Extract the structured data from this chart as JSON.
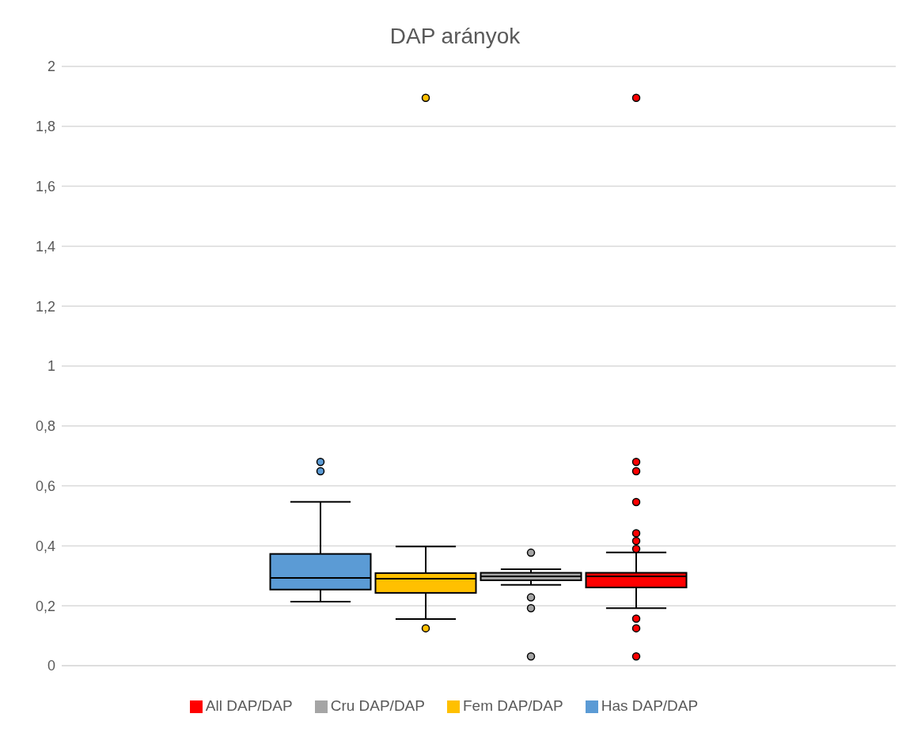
{
  "chart_data": {
    "type": "box",
    "title": "DAP arányok",
    "categories": [
      null
    ],
    "series": [
      {
        "name": "Has DAP/DAP",
        "color": "#5b9bd5",
        "boxes": [
          {
            "low": 0.214,
            "q1": 0.254,
            "median": 0.293,
            "q3": 0.373,
            "high": 0.547,
            "outliers": [
              0.68,
              0.649
            ]
          }
        ]
      },
      {
        "name": "Fem DAP/DAP",
        "color": "#ffc000",
        "boxes": [
          {
            "low": 0.156,
            "q1": 0.243,
            "median": 0.29,
            "q3": 0.309,
            "high": 0.398,
            "outliers": [
              1.895,
              0.125
            ]
          }
        ]
      },
      {
        "name": "Cru DAP/DAP",
        "color": "#a5a5a5",
        "boxes": [
          {
            "low": 0.27,
            "q1": 0.285,
            "median": 0.298,
            "q3": 0.31,
            "high": 0.322,
            "outliers": [
              0.377,
              0.228,
              0.192,
              0.031
            ]
          }
        ]
      },
      {
        "name": "All DAP/DAP",
        "color": "#ff0000",
        "boxes": [
          {
            "low": 0.192,
            "q1": 0.261,
            "median": 0.298,
            "q3": 0.31,
            "high": 0.378,
            "outliers": [
              1.895,
              0.68,
              0.649,
              0.546,
              0.442,
              0.416,
              0.39,
              0.157,
              0.125,
              0.031
            ]
          }
        ]
      }
    ],
    "ylim": [
      0,
      2
    ],
    "yticks": [
      0,
      {
        "value": 0.2,
        "label": "0,2"
      },
      {
        "value": 0.4,
        "label": "0,4"
      },
      {
        "value": 0.6,
        "label": "0,6"
      },
      {
        "value": 0.8,
        "label": "0,8"
      },
      1,
      {
        "value": 1.2,
        "label": "1,2"
      },
      {
        "value": 1.4,
        "label": "1,4"
      },
      {
        "value": 1.6,
        "label": "1,6"
      },
      {
        "value": 1.8,
        "label": "1,8"
      },
      2
    ],
    "grid": "y",
    "legend": "bottom"
  }
}
